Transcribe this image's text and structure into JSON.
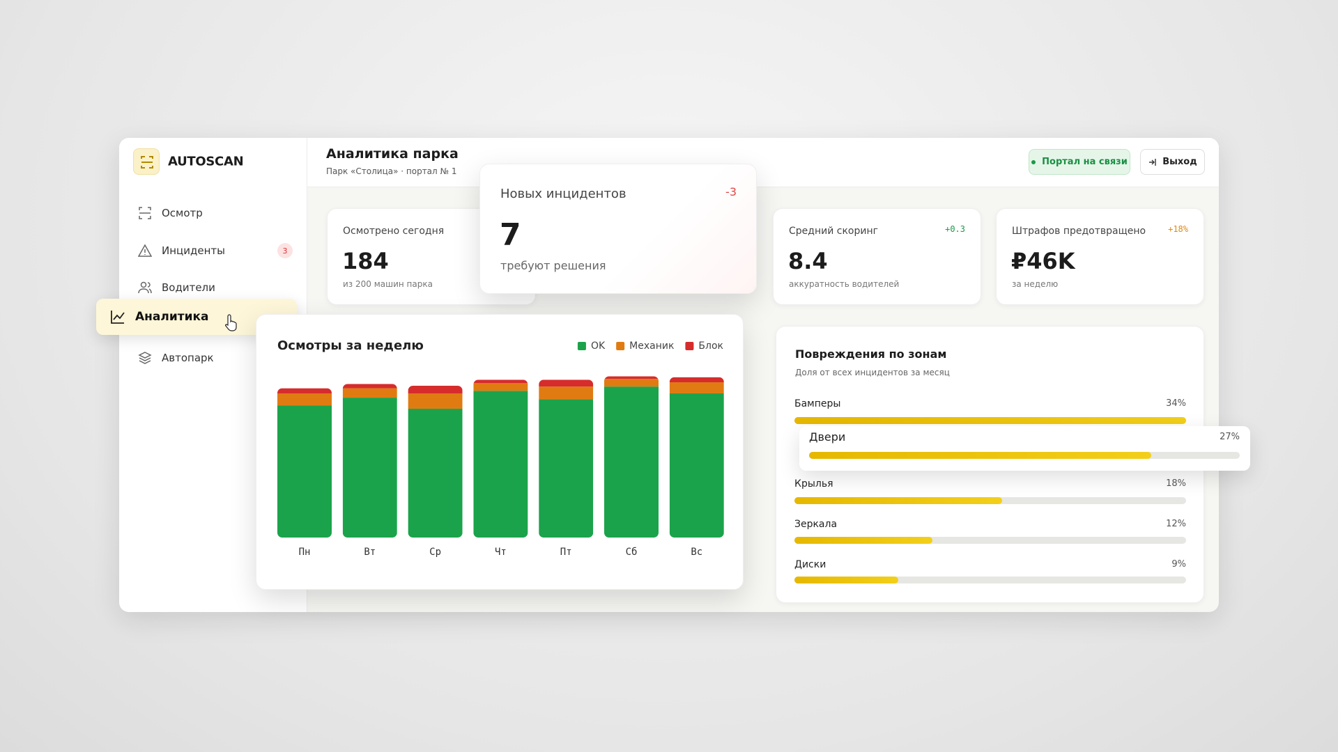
{
  "brand": "AUTOSCAN",
  "nav": [
    {
      "label": "Осмотр"
    },
    {
      "label": "Инциденты",
      "badge": "3"
    },
    {
      "label": "Водители"
    },
    {
      "label": "Аналитика",
      "active": true
    },
    {
      "label": "Автопарк"
    }
  ],
  "header": {
    "title": "Аналитика парка",
    "subtitle": "Парк «Столица» · портал № 1",
    "status": "Портал на связи",
    "logout": "Выход"
  },
  "kpis": [
    {
      "label": "Осмотрено сегодня",
      "value": "184",
      "note": "из 200 машин парка"
    },
    {
      "label": "Новых инцидентов",
      "value": "7",
      "note": "требуют решения",
      "delta": "-3"
    },
    {
      "label": "Средний скоринг",
      "value": "8.4",
      "note": "аккуратность водителей",
      "delta": "+0.3"
    },
    {
      "label": "Штрафов предотвращено",
      "value": "₽46K",
      "note": "за неделю",
      "delta": "+18%"
    }
  ],
  "chart_data": {
    "type": "stacked-bar",
    "title": "Осмотры за неделю",
    "categories": [
      "Пн",
      "Вт",
      "Ср",
      "Чт",
      "Пт",
      "Сб",
      "Вс"
    ],
    "series": [
      {
        "name": "OK",
        "color": "#1ba34b",
        "values": [
          155,
          164,
          151,
          172,
          162,
          177,
          169
        ]
      },
      {
        "name": "Механик",
        "color": "#e07b12",
        "values": [
          14,
          11,
          18,
          9,
          15,
          9,
          13
        ]
      },
      {
        "name": "Блок",
        "color": "#d62c2c",
        "values": [
          6,
          5,
          9,
          4,
          8,
          3,
          6
        ]
      }
    ],
    "ylim": [
      0,
      200
    ]
  },
  "damage": {
    "type": "bar",
    "title": "Повреждения по зонам",
    "subtitle": "Доля от всех инцидентов за месяц",
    "categories": [
      "Бамперы",
      "Двери",
      "Крылья",
      "Зеркала",
      "Диски"
    ],
    "values": [
      34,
      27,
      18,
      12,
      9
    ],
    "value_labels": [
      "34%",
      "27%",
      "18%",
      "12%",
      "9%"
    ],
    "xlim": [
      0,
      34
    ],
    "color": "#e6b800"
  }
}
